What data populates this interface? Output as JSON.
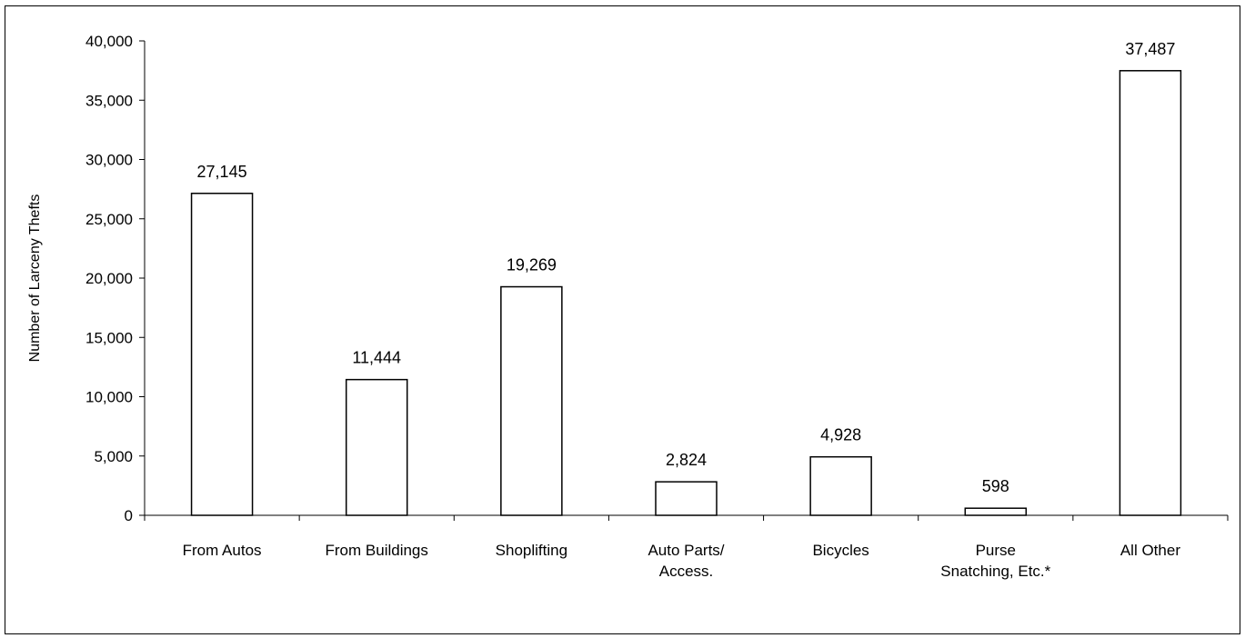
{
  "chart_data": {
    "type": "bar",
    "title": "",
    "xlabel": "",
    "ylabel": "Number of Larceny Thefts",
    "ylim": [
      0,
      40000
    ],
    "ytick_step": 5000,
    "yticks": [
      "0",
      "5,000",
      "10,000",
      "15,000",
      "20,000",
      "25,000",
      "30,000",
      "35,000",
      "40,000"
    ],
    "grid": false,
    "legend": "none",
    "categories": [
      [
        "From Autos"
      ],
      [
        "From Buildings"
      ],
      [
        "Shoplifting"
      ],
      [
        "Auto Parts/",
        "Access."
      ],
      [
        "Bicycles"
      ],
      [
        "Purse",
        "Snatching, Etc.*"
      ],
      [
        "All Other"
      ]
    ],
    "values": [
      27145,
      11444,
      19269,
      2824,
      4928,
      598,
      37487
    ],
    "data_labels": [
      "27,145",
      "11,444",
      "19,269",
      "2,824",
      "4,928",
      "598",
      "37,487"
    ],
    "colors": {
      "bar_fill": "#ffffff",
      "bar_stroke": "#000000",
      "axis": "#000000"
    }
  }
}
